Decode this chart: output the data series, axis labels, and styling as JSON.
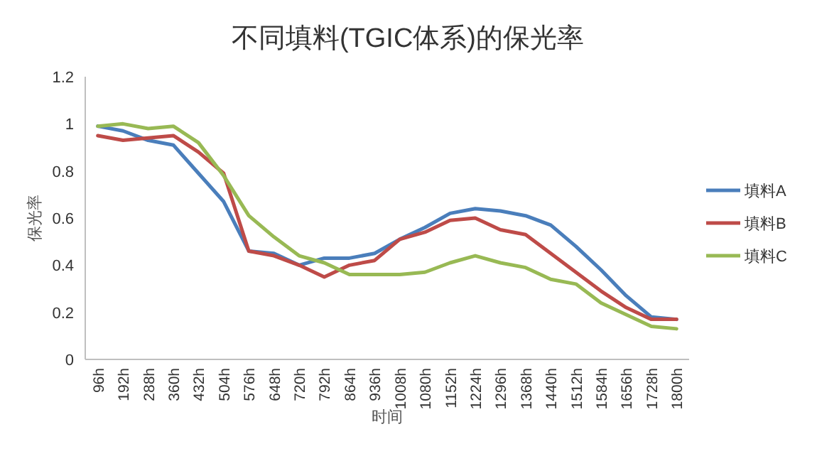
{
  "chart_data": {
    "type": "line",
    "title": "不同填料(TGIC体系)的保光率",
    "xlabel": "时间",
    "ylabel": "保光率",
    "categories": [
      "96h",
      "192h",
      "288h",
      "360h",
      "432h",
      "504h",
      "576h",
      "648h",
      "720h",
      "792h",
      "864h",
      "936h",
      "1008h",
      "1080h",
      "1152h",
      "1224h",
      "1296h",
      "1368h",
      "1440h",
      "1512h",
      "1584h",
      "1656h",
      "1728h",
      "1800h"
    ],
    "series": [
      {
        "name": "填料A",
        "color": "#4a7ebb",
        "values": [
          0.99,
          0.97,
          0.93,
          0.91,
          0.79,
          0.67,
          0.46,
          0.45,
          0.4,
          0.43,
          0.43,
          0.45,
          0.51,
          0.56,
          0.62,
          0.64,
          0.63,
          0.61,
          0.57,
          0.48,
          0.38,
          0.27,
          0.18,
          0.17
        ]
      },
      {
        "name": "填料B",
        "color": "#be4b48",
        "values": [
          0.95,
          0.93,
          0.94,
          0.95,
          0.88,
          0.79,
          0.46,
          0.44,
          0.4,
          0.35,
          0.4,
          0.42,
          0.51,
          0.54,
          0.59,
          0.6,
          0.55,
          0.53,
          0.45,
          0.37,
          0.29,
          0.22,
          0.17,
          0.17
        ]
      },
      {
        "name": "填料C",
        "color": "#98b954",
        "values": [
          0.99,
          1.0,
          0.98,
          0.99,
          0.92,
          0.78,
          0.61,
          0.52,
          0.44,
          0.41,
          0.36,
          0.36,
          0.36,
          0.37,
          0.41,
          0.44,
          0.41,
          0.39,
          0.34,
          0.32,
          0.24,
          0.19,
          0.14,
          0.13
        ]
      }
    ],
    "ylim": [
      0,
      1.2
    ],
    "yticks": [
      0,
      0.2,
      0.4,
      0.6,
      0.8,
      1,
      1.2
    ],
    "grid": false,
    "legend": "right",
    "marker": "none",
    "line_style": "solid"
  }
}
